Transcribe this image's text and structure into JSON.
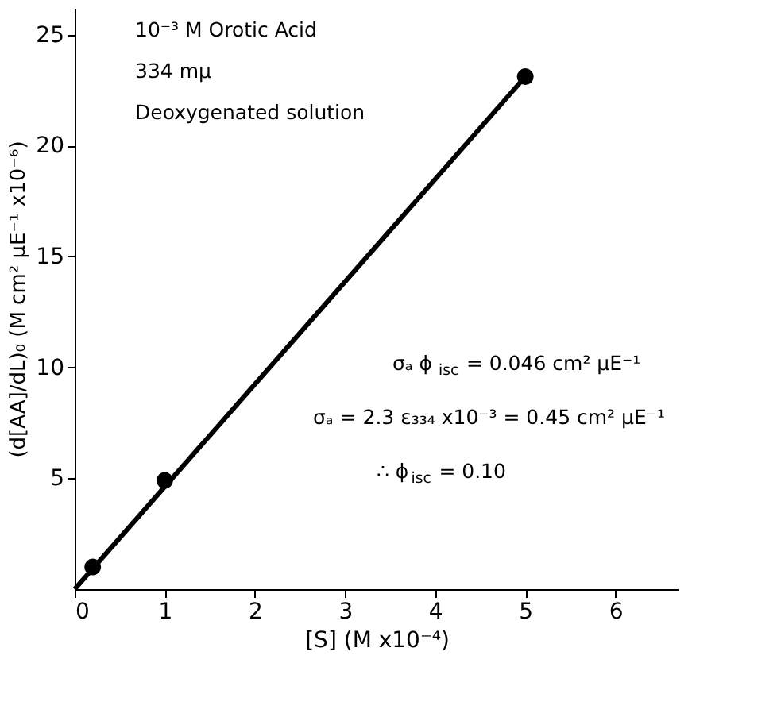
{
  "chart_data": {
    "type": "scatter",
    "xlabel": "[S] (M x10⁻⁴)",
    "ylabel": "(d[AA]/dL)₀ (M cm² μE⁻¹ x10⁻⁶)",
    "x": [
      0.2,
      1,
      5
    ],
    "series": [
      {
        "color": "#000000",
        "values": [
          1.0,
          4.9,
          23.1
        ],
        "marker": "circle"
      },
      {
        "type": "line",
        "color": "#000000",
        "x": [
          0,
          5
        ],
        "values": [
          0,
          23.1
        ],
        "marker": "none",
        "line_style": "solid"
      }
    ],
    "xlim": [
      0,
      6.7
    ],
    "ylim": [
      0,
      26.2
    ],
    "xticks": [
      0,
      1,
      2,
      3,
      4,
      5,
      6
    ],
    "yticks": [
      5,
      10,
      15,
      20,
      25
    ],
    "grid": false,
    "annotations": [
      "10⁻³ M Orotic Acid",
      "334 mμ",
      "Deoxygenated solution",
      "σₐ ϕ$_{isc}$ = 0.046 cm² μE⁻¹",
      "σₐ = 2.3 ε₃₃₄ x10⁻³ = 0.45 cm² μE⁻¹",
      "∴ ϕ$_{isc}$ = 0.10"
    ]
  }
}
